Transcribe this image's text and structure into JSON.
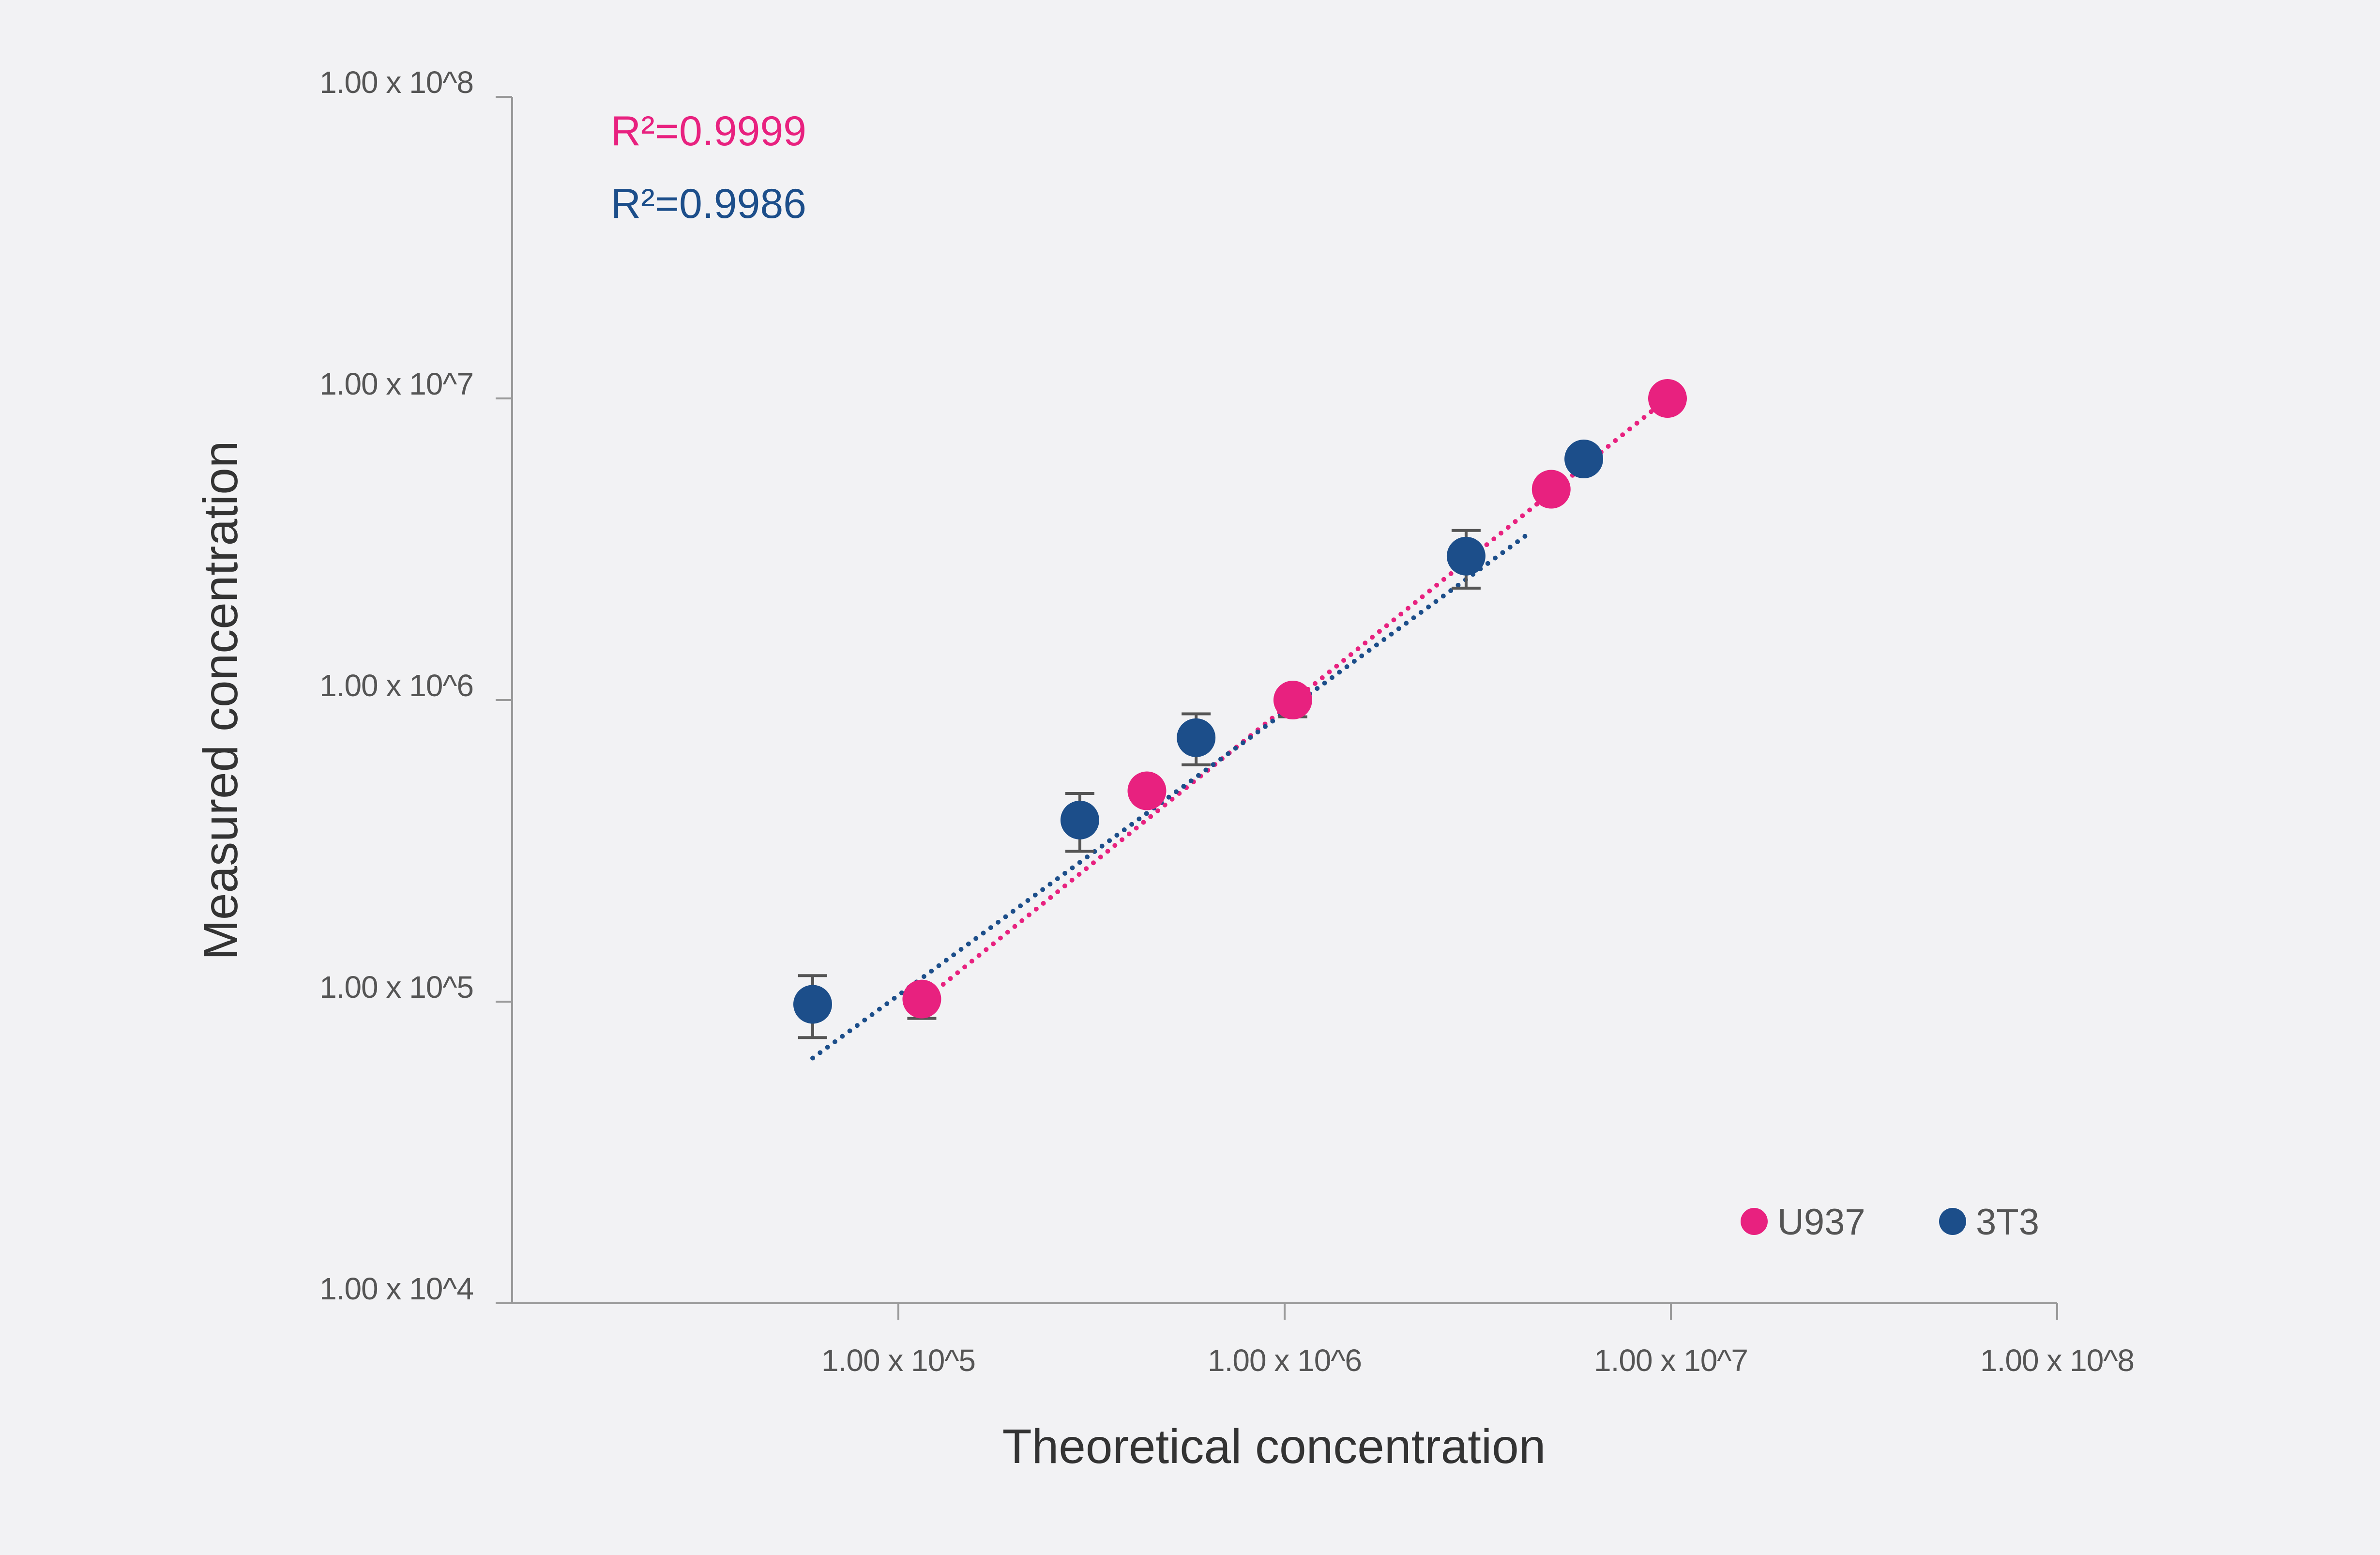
{
  "chart_data": {
    "type": "scatter",
    "xlabel": "Theoretical concentration",
    "ylabel": "Measured concentration",
    "xscale": "log",
    "yscale": "log",
    "xlim": [
      10000,
      100000000
    ],
    "ylim": [
      10000,
      100000000
    ],
    "x_ticks": [
      {
        "value": 100000,
        "label": "1.00 x 10^5"
      },
      {
        "value": 1000000,
        "label": "1.00 x 10^6"
      },
      {
        "value": 10000000,
        "label": "1.00 x 10^7"
      },
      {
        "value": 100000000,
        "label": "1.00 x 10^8"
      }
    ],
    "y_ticks": [
      {
        "value": 10000,
        "label": "1.00 x 10^4"
      },
      {
        "value": 100000,
        "label": "1.00 x 10^5"
      },
      {
        "value": 1000000,
        "label": "1.00 x 10^6"
      },
      {
        "value": 10000000,
        "label": "1.00 x 10^7"
      },
      {
        "value": 100000000,
        "label": "1.00 x 10^8"
      }
    ],
    "grid": false,
    "legend_position": "bottom-right",
    "series": [
      {
        "name": "U937",
        "color": "#e8217f",
        "r2_label": "R²=0.9999",
        "points": [
          {
            "x": 115000,
            "y": 102000,
            "err_low": 88000,
            "err_high": 102000
          },
          {
            "x": 440000,
            "y": 500000
          },
          {
            "x": 1050000,
            "y": 1000000,
            "err_low": 880000,
            "err_high": 1000000
          },
          {
            "x": 4900000,
            "y": 5000000
          },
          {
            "x": 9800000,
            "y": 10000000
          }
        ],
        "trendline": {
          "x1": 115000,
          "y1": 100000,
          "x2": 9800000,
          "y2": 10000000
        }
      },
      {
        "name": "3T3",
        "color": "#1c4e8a",
        "r2_label": "R²=0.9986",
        "points": [
          {
            "x": 60000,
            "y": 98000,
            "err_low": 76000,
            "err_high": 122000
          },
          {
            "x": 295000,
            "y": 400000,
            "err_low": 315000,
            "err_high": 490000
          },
          {
            "x": 590000,
            "y": 750000,
            "err_low": 610000,
            "err_high": 900000
          },
          {
            "x": 2950000,
            "y": 3000000,
            "err_low": 2350000,
            "err_high": 3650000
          },
          {
            "x": 5950000,
            "y": 6300000
          }
        ],
        "trendline": {
          "x1": 60000,
          "y1": 65000,
          "x2": 4200000,
          "y2": 3500000
        }
      }
    ]
  }
}
